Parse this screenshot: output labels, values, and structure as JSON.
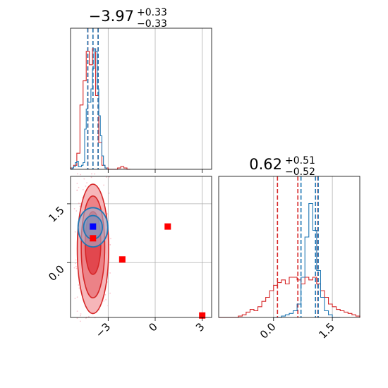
{
  "chart_data": [
    {
      "type": "histogram",
      "panel": "marginal-x1",
      "title": {
        "value": "−3.97",
        "plus": "+0.33",
        "minus": "−0.33"
      },
      "xlim": [
        -5.4,
        3.6
      ],
      "x_ticks": [
        -3,
        0,
        3
      ],
      "grid": true,
      "series": [
        {
          "color": "#d62728",
          "bins_x": [
            -5.4,
            -5.2,
            -5.0,
            -4.8,
            -4.6,
            -4.4,
            -4.2,
            -4.0,
            -3.8,
            -3.6,
            -3.4,
            -3.2,
            -3.0,
            -2.8,
            -2.6,
            -2.4,
            -2.2,
            -2.0,
            -1.8
          ],
          "bins_y": [
            0.01,
            0.03,
            0.12,
            0.48,
            0.66,
            0.88,
            0.78,
            0.9,
            0.55,
            0.2,
            0.03,
            0.01,
            0.0,
            0.0,
            0.0,
            0.01,
            0.02,
            0.01,
            0.0
          ],
          "quantiles": [
            -4.3,
            -3.97,
            -3.64
          ]
        },
        {
          "color": "#1f77b4",
          "bins_x": [
            -5.4,
            -5.3,
            -5.2,
            -5.1,
            -5.0,
            -4.9,
            -4.8,
            -4.7,
            -4.6,
            -4.5,
            -4.4,
            -4.3,
            -4.2,
            -4.1,
            -4.0,
            -3.9,
            -3.8,
            -3.7,
            -3.6,
            -3.5,
            -3.4,
            -3.3,
            -3.2
          ],
          "bins_y": [
            0.0,
            0.01,
            0.02,
            0.05,
            0.06,
            0.02,
            0.02,
            0.03,
            0.05,
            0.3,
            0.45,
            0.5,
            0.5,
            0.6,
            0.75,
            0.9,
            0.88,
            0.6,
            0.4,
            0.25,
            0.1,
            0.03,
            0.01
          ],
          "quantiles": [
            -4.3,
            -3.97,
            -3.64
          ]
        }
      ]
    },
    {
      "type": "histogram",
      "panel": "marginal-x2",
      "title": {
        "value": "0.62",
        "plus": "+0.51",
        "minus": "−0.52"
      },
      "xlim": [
        -1.4,
        2.2
      ],
      "x_ticks": [
        0.0,
        1.5
      ],
      "x_tick_labels": [
        "0.0",
        "1.5"
      ],
      "grid": true,
      "series": [
        {
          "color": "#d62728",
          "bins_x": [
            -1.4,
            -1.3,
            -1.2,
            -1.1,
            -1.0,
            -0.9,
            -0.8,
            -0.7,
            -0.6,
            -0.5,
            -0.4,
            -0.3,
            -0.2,
            -0.1,
            0.0,
            0.1,
            0.2,
            0.3,
            0.4,
            0.5,
            0.6,
            0.7,
            0.8,
            0.9,
            1.0,
            1.1,
            1.2,
            1.3,
            1.4,
            1.5,
            1.6,
            1.7,
            1.8,
            1.9,
            2.0,
            2.1
          ],
          "bins_y": [
            0.0,
            0.0,
            0.0,
            0.0,
            0.0,
            0.01,
            0.02,
            0.04,
            0.06,
            0.05,
            0.08,
            0.12,
            0.15,
            0.2,
            0.24,
            0.26,
            0.28,
            0.25,
            0.3,
            0.3,
            0.28,
            0.25,
            0.3,
            0.28,
            0.3,
            0.25,
            0.2,
            0.15,
            0.1,
            0.08,
            0.06,
            0.05,
            0.04,
            0.03,
            0.02,
            0.01
          ],
          "quantiles": [
            0.1,
            0.62,
            1.13
          ]
        },
        {
          "color": "#1f77b4",
          "bins_x": [
            0.0,
            0.1,
            0.2,
            0.3,
            0.4,
            0.5,
            0.6,
            0.7,
            0.8,
            0.9,
            1.0,
            1.1,
            1.2,
            1.3,
            1.4,
            1.5,
            1.6
          ],
          "bins_y": [
            0.0,
            0.0,
            0.01,
            0.02,
            0.03,
            0.05,
            0.1,
            0.3,
            0.6,
            0.85,
            0.65,
            0.35,
            0.15,
            0.05,
            0.02,
            0.0,
            0.0
          ],
          "quantiles": [
            0.7,
            1.07,
            1.14
          ]
        }
      ]
    },
    {
      "type": "scatter",
      "panel": "joint",
      "xlim": [
        -5.4,
        3.6
      ],
      "ylim": [
        -1.4,
        2.2
      ],
      "x_ticks": [
        -3,
        0,
        3
      ],
      "y_ticks": [
        0.0,
        1.5
      ],
      "y_tick_labels": [
        "0.0",
        "1.5"
      ],
      "grid": true,
      "red_points": [
        [
          -3.97,
          0.62
        ],
        [
          -2.1,
          0.08
        ],
        [
          0.8,
          0.92
        ],
        [
          3.0,
          -1.35
        ]
      ],
      "blue_points": [
        [
          -3.97,
          0.92
        ]
      ],
      "red_contours": [
        {
          "cx": -3.97,
          "cy": 0.35,
          "rx": 1.0,
          "ry": 1.65
        },
        {
          "cx": -3.97,
          "cy": 0.4,
          "rx": 0.75,
          "ry": 1.3
        },
        {
          "cx": -3.97,
          "cy": 0.5,
          "rx": 0.5,
          "ry": 0.8
        }
      ],
      "blue_contours": [
        {
          "cx": -3.97,
          "cy": 0.9,
          "rx": 0.95,
          "ry": 0.5
        },
        {
          "cx": -3.97,
          "cy": 0.9,
          "rx": 0.6,
          "ry": 0.3
        }
      ]
    }
  ],
  "colors": {
    "red": "#d62728",
    "blue": "#1f77b4",
    "axis": "#000000",
    "grid": "#b0b0b0"
  }
}
